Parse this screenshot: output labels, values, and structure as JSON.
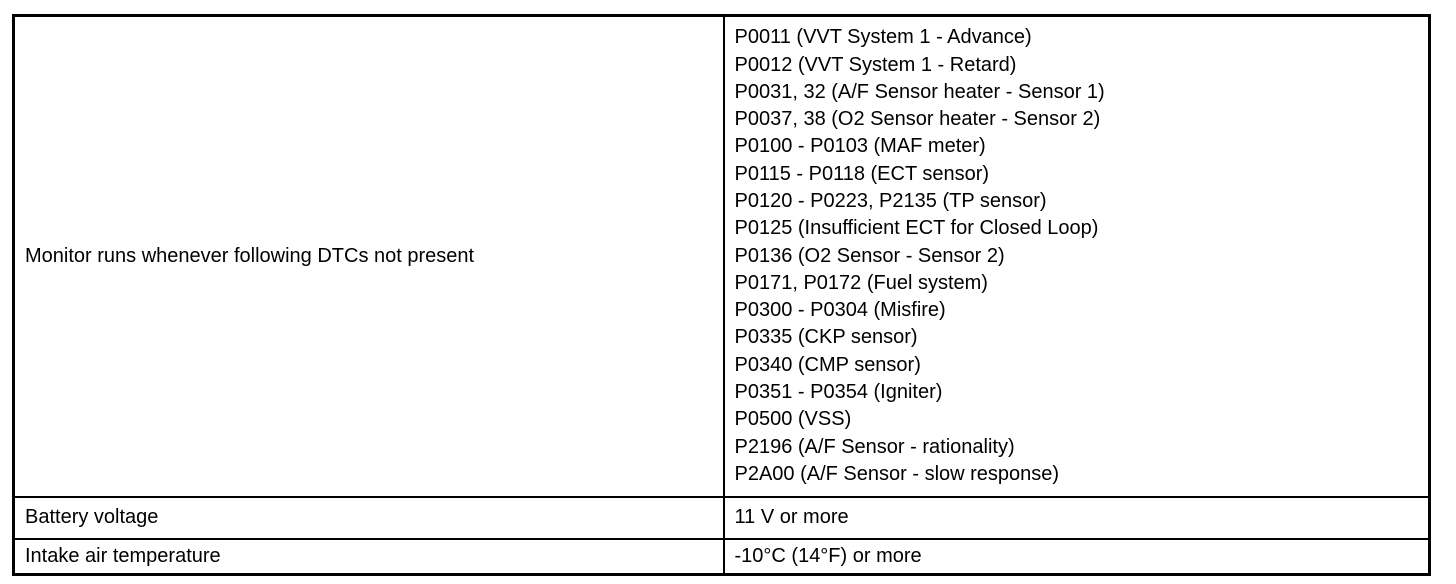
{
  "colors": {
    "border": "#000000",
    "background": "#ffffff",
    "text": "#000000"
  },
  "table": {
    "rows": [
      {
        "label": "Monitor runs whenever following DTCs not present",
        "values": [
          "P0011 (VVT System 1 - Advance)",
          "P0012 (VVT System 1 - Retard)",
          "P0031, 32 (A/F Sensor heater - Sensor 1)",
          "P0037, 38 (O2 Sensor heater - Sensor 2)",
          "P0100 - P0103 (MAF meter)",
          "P0115 - P0118 (ECT sensor)",
          "P0120 - P0223, P2135 (TP sensor)",
          "P0125 (Insufficient ECT for Closed Loop)",
          "P0136 (O2 Sensor - Sensor 2)",
          "P0171, P0172 (Fuel system)",
          "P0300 - P0304 (Misfire)",
          "P0335 (CKP sensor)",
          "P0340 (CMP sensor)",
          "P0351 - P0354 (Igniter)",
          "P0500 (VSS)",
          "P2196 (A/F Sensor - rationality)",
          "P2A00 (A/F Sensor - slow response)"
        ]
      },
      {
        "label": "Battery voltage",
        "values": [
          "11 V or more"
        ]
      },
      {
        "label": "Intake air temperature",
        "values": [
          "-10°C (14°F) or more"
        ]
      }
    ]
  }
}
